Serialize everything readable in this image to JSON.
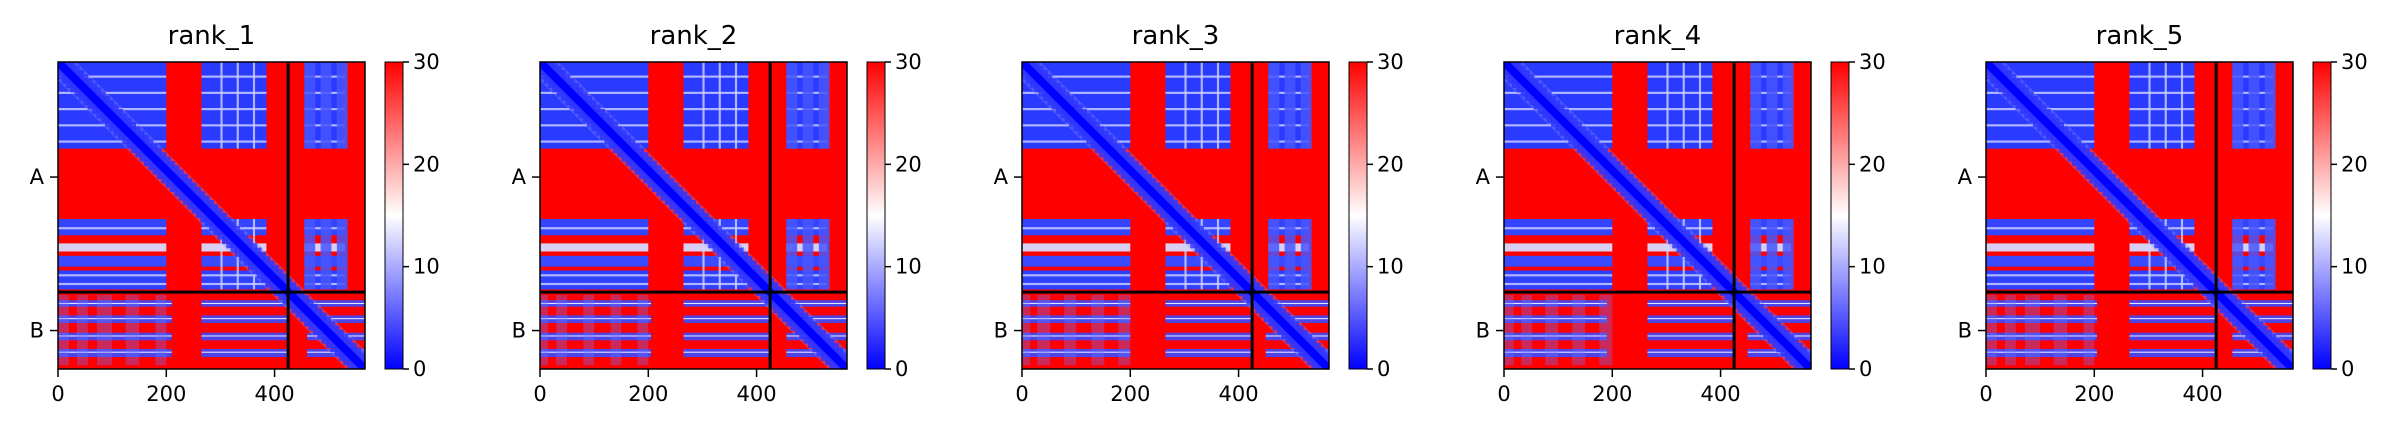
{
  "chart_data": {
    "type": "heatmap",
    "colormap": {
      "low_color": "#0000ff",
      "mid_color": "#ffffff",
      "high_color": "#ff0000",
      "range": [
        0,
        30
      ],
      "ticks": [
        0,
        10,
        20,
        30
      ]
    },
    "xlim": [
      0,
      567
    ],
    "x_ticks": [
      0,
      200,
      400
    ],
    "chain_boundary": 425,
    "chain_labels": [
      "A",
      "B"
    ],
    "panels": [
      {
        "title": "rank_1",
        "b_row_contact_segments": [
          [
            0,
            210
          ],
          [
            265,
            425
          ],
          [
            460,
            567
          ]
        ],
        "ab_column_blue": [
          [
            0,
            20
          ],
          [
            35,
            55
          ],
          [
            72,
            100
          ],
          [
            125,
            150
          ],
          [
            180,
            200
          ]
        ]
      },
      {
        "title": "rank_2",
        "b_row_contact_segments": [
          [
            0,
            205
          ],
          [
            265,
            425
          ],
          [
            455,
            567
          ]
        ],
        "ab_column_blue": [
          [
            0,
            15
          ],
          [
            30,
            50
          ],
          [
            80,
            100
          ],
          [
            130,
            150
          ],
          [
            180,
            200
          ]
        ]
      },
      {
        "title": "rank_3",
        "b_row_contact_segments": [
          [
            0,
            200
          ],
          [
            265,
            425
          ],
          [
            450,
            567
          ]
        ],
        "ab_column_blue": [
          [
            0,
            15
          ],
          [
            28,
            52
          ],
          [
            78,
            100
          ],
          [
            128,
            152
          ],
          [
            178,
            200
          ]
        ]
      },
      {
        "title": "rank_4",
        "b_row_contact_segments": [
          [
            0,
            190
          ],
          [
            265,
            425
          ],
          [
            450,
            567
          ]
        ],
        "ab_column_blue": [
          [
            0,
            18
          ],
          [
            32,
            52
          ],
          [
            76,
            100
          ],
          [
            126,
            150
          ],
          [
            176,
            200
          ]
        ]
      },
      {
        "title": "rank_5",
        "b_row_contact_segments": [
          [
            0,
            205
          ],
          [
            265,
            425
          ],
          [
            455,
            567
          ]
        ],
        "ab_column_blue": [
          [
            0,
            20
          ],
          [
            35,
            55
          ],
          [
            72,
            100
          ],
          [
            125,
            150
          ],
          [
            180,
            200
          ]
        ]
      }
    ]
  }
}
